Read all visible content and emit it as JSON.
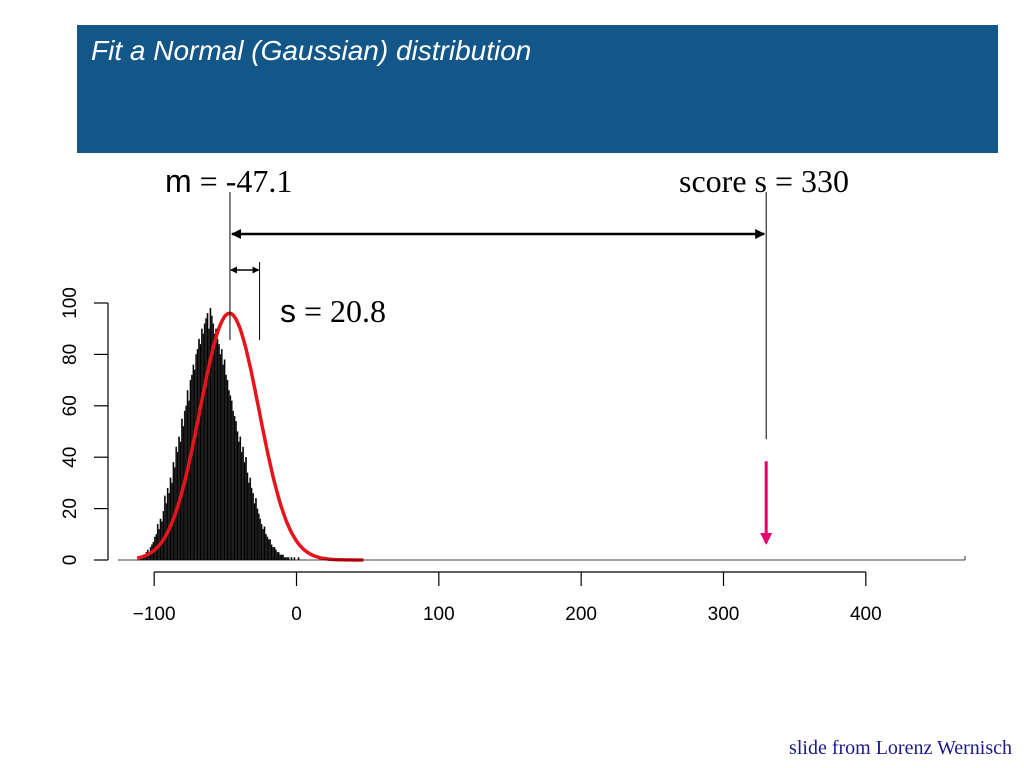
{
  "slide": {
    "title": "Fit a Normal (Gaussian) distribution",
    "credit": "slide from Lorenz Wernisch"
  },
  "annotations": {
    "mean_symbol": "m",
    "mean_text": " = -47.1",
    "sd_symbol": "s",
    "sd_text": " = 20.8",
    "score_text": "score s = 330"
  },
  "colors": {
    "title_bar": "#135688",
    "fit_curve": "#e8141c",
    "score_arrow": "#e8006e",
    "histogram": "#000000"
  },
  "chart_data": {
    "type": "bar",
    "xlim": [
      -110,
      470
    ],
    "ylim": [
      0,
      100
    ],
    "x_ticks": [
      -100,
      0,
      100,
      200,
      300,
      400
    ],
    "x_tick_labels": [
      "−100",
      "0",
      "100",
      "200",
      "300",
      "400"
    ],
    "y_ticks": [
      0,
      20,
      40,
      60,
      80,
      100
    ],
    "y_tick_labels": [
      "0",
      "20",
      "40",
      "60",
      "80",
      "100"
    ],
    "histogram": {
      "bin_width": 1,
      "bin_start": -110,
      "counts": [
        1,
        1,
        2,
        2,
        3,
        4,
        3,
        5,
        6,
        7,
        9,
        10,
        14,
        12,
        16,
        15,
        19,
        25,
        22,
        28,
        26,
        32,
        30,
        38,
        36,
        44,
        42,
        48,
        46,
        55,
        52,
        58,
        60,
        66,
        62,
        70,
        72,
        76,
        74,
        80,
        82,
        86,
        84,
        90,
        88,
        92,
        94,
        96,
        90,
        98,
        95,
        92,
        88,
        90,
        86,
        84,
        80,
        82,
        76,
        78,
        72,
        70,
        66,
        64,
        62,
        58,
        56,
        54,
        50,
        46,
        48,
        42,
        44,
        38,
        40,
        34,
        30,
        32,
        28,
        26,
        22,
        24,
        20,
        18,
        16,
        14,
        12,
        13,
        10,
        9,
        8,
        8,
        6,
        5,
        5,
        4,
        3,
        3,
        2,
        2,
        2,
        1,
        1,
        1,
        1,
        0,
        1,
        0,
        1,
        0,
        0,
        1,
        0,
        0,
        0,
        0,
        0,
        0,
        0,
        0,
        0,
        0,
        0,
        0,
        0,
        0,
        0,
        0,
        0,
        0,
        0,
        0,
        0,
        0,
        0,
        0,
        0,
        0,
        0,
        0,
        0,
        0,
        0,
        0,
        0,
        0,
        0,
        0,
        0,
        0,
        0,
        0,
        0
      ]
    },
    "normal_fit": {
      "mean": -47.1,
      "sd": 20.8,
      "peak": 96,
      "x_range": [
        -112,
        47
      ]
    },
    "score": {
      "x": 330,
      "y": 47
    }
  }
}
